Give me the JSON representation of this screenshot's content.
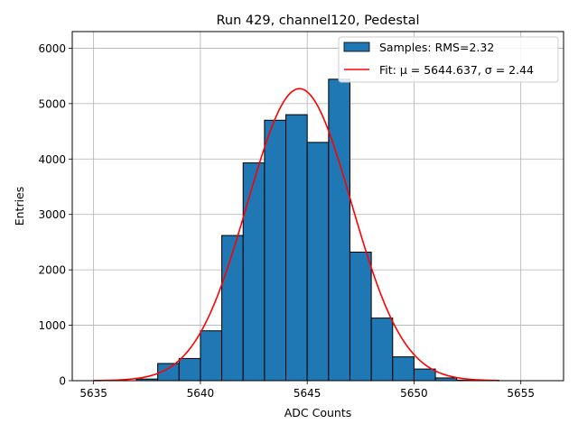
{
  "chart_data": {
    "type": "bar",
    "title": "Run 429, channel120, Pedestal",
    "xlabel": "ADC Counts",
    "ylabel": "Entries",
    "xlim": [
      5634,
      5657
    ],
    "ylim": [
      0,
      6300
    ],
    "xticks": [
      5635,
      5640,
      5645,
      5650,
      5655
    ],
    "yticks": [
      0,
      1000,
      2000,
      3000,
      4000,
      5000,
      6000
    ],
    "grid": true,
    "legend_position": "top-right",
    "colors": {
      "bars": "#1f77b4",
      "bar_edge": "#000000",
      "fit": "#ff0000",
      "grid": "#b0b0b0"
    },
    "histogram": {
      "name": "Samples: RMS=2.32",
      "bin_edges": [
        5635,
        5636,
        5637,
        5638,
        5639,
        5640,
        5641,
        5642,
        5643,
        5644,
        5645,
        5646,
        5647,
        5648,
        5649,
        5650,
        5651,
        5652,
        5653,
        5654,
        5655,
        5656
      ],
      "counts": [
        0,
        0,
        30,
        310,
        400,
        900,
        2620,
        3930,
        4700,
        4800,
        4300,
        5440,
        2320,
        1130,
        430,
        210,
        50,
        10,
        0,
        0,
        0
      ]
    },
    "fit": {
      "name": "Fit: μ = 5644.637, σ = 2.44",
      "mu": 5644.637,
      "sigma": 2.44,
      "amplitude": 5270,
      "x_range": [
        5635,
        5654
      ]
    }
  }
}
